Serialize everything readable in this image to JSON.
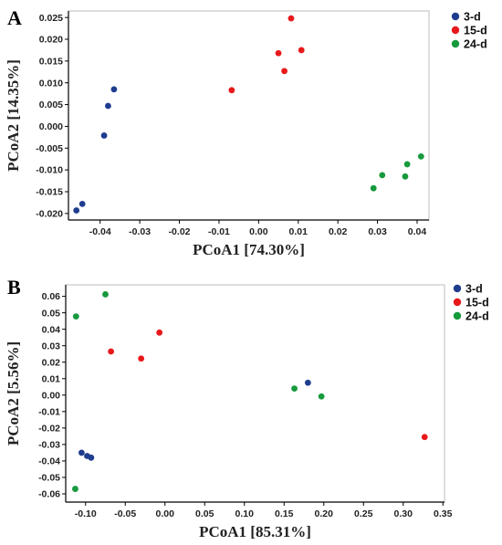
{
  "chart_data": [
    {
      "type": "scatter",
      "panel_label": "A",
      "xlabel": "PCoA1 [74.30%]",
      "ylabel": "PCoA2 [14.35%]",
      "xlim": [
        -0.048,
        0.043
      ],
      "ylim": [
        -0.0215,
        0.0265
      ],
      "xticks": [
        -0.04,
        -0.03,
        -0.02,
        -0.01,
        0.0,
        0.01,
        0.02,
        0.03,
        0.04
      ],
      "xtick_labels": [
        "-0.04",
        "-0.03",
        "-0.02",
        "-0.01",
        "0.00",
        "0.01",
        "0.02",
        "0.03",
        "0.04"
      ],
      "yticks": [
        -0.02,
        -0.015,
        -0.01,
        -0.005,
        0.0,
        0.005,
        0.01,
        0.015,
        0.02,
        0.025
      ],
      "ytick_labels": [
        "-0.020",
        "-0.015",
        "-0.010",
        "-0.005",
        "0.000",
        "0.005",
        "0.010",
        "0.015",
        "0.020",
        "0.025"
      ],
      "legend_position": "top-right outside",
      "series": [
        {
          "name": "3-d",
          "color": "#1f3d8f",
          "points": [
            [
              -0.0365,
              0.0085
            ],
            [
              -0.038,
              0.0047
            ],
            [
              -0.039,
              -0.0021
            ],
            [
              -0.0445,
              -0.0178
            ],
            [
              -0.046,
              -0.0193
            ]
          ]
        },
        {
          "name": "15-d",
          "color": "#e8191b",
          "points": [
            [
              0.0082,
              0.0248
            ],
            [
              0.0108,
              0.0175
            ],
            [
              0.005,
              0.0168
            ],
            [
              0.0065,
              0.0127
            ],
            [
              -0.0068,
              0.0083
            ]
          ]
        },
        {
          "name": "24-d",
          "color": "#169a3c",
          "points": [
            [
              0.041,
              -0.0069
            ],
            [
              0.0375,
              -0.0087
            ],
            [
              0.0312,
              -0.0112
            ],
            [
              0.037,
              -0.0115
            ],
            [
              0.029,
              -0.0142
            ]
          ]
        }
      ]
    },
    {
      "type": "scatter",
      "panel_label": "B",
      "xlabel": "PCoA1 [85.31%]",
      "ylabel": "PCoA2 [5.56%]",
      "xlim": [
        -0.125,
        0.352
      ],
      "ylim": [
        -0.065,
        0.067
      ],
      "xticks": [
        -0.1,
        -0.05,
        0.0,
        0.05,
        0.1,
        0.15,
        0.2,
        0.25,
        0.3,
        0.35
      ],
      "xtick_labels": [
        "-0.10",
        "-0.05",
        "0.00",
        "0.05",
        "0.10",
        "0.15",
        "0.20",
        "0.25",
        "0.30",
        "0.35"
      ],
      "yticks": [
        -0.06,
        -0.05,
        -0.04,
        -0.03,
        -0.02,
        -0.01,
        0.0,
        0.01,
        0.02,
        0.03,
        0.04,
        0.05,
        0.06
      ],
      "ytick_labels": [
        "-0.06",
        "-0.05",
        "-0.04",
        "-0.03",
        "-0.02",
        "-0.01",
        "0.00",
        "0.01",
        "0.02",
        "0.03",
        "0.04",
        "0.05",
        "0.06"
      ],
      "legend_position": "top-right outside",
      "series": [
        {
          "name": "3-d",
          "color": "#1f3d8f",
          "points": [
            [
              0.18,
              0.0075
            ],
            [
              -0.105,
              -0.035
            ],
            [
              -0.098,
              -0.037
            ],
            [
              -0.093,
              -0.038
            ]
          ]
        },
        {
          "name": "15-d",
          "color": "#e8191b",
          "points": [
            [
              -0.007,
              0.038
            ],
            [
              -0.068,
              0.0265
            ],
            [
              -0.03,
              0.0222
            ],
            [
              0.327,
              -0.0255
            ]
          ]
        },
        {
          "name": "24-d",
          "color": "#169a3c",
          "points": [
            [
              -0.075,
              0.0612
            ],
            [
              -0.112,
              0.0478
            ],
            [
              0.163,
              0.004
            ],
            [
              0.197,
              -0.0008
            ],
            [
              -0.113,
              -0.057
            ]
          ]
        }
      ]
    }
  ]
}
